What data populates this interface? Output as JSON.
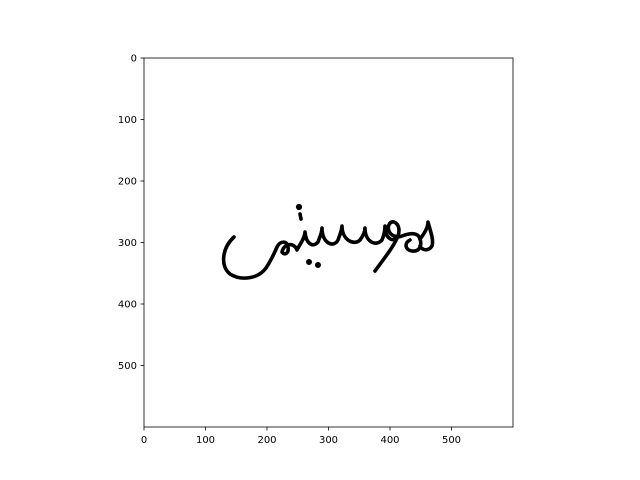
{
  "image": {
    "type": "image",
    "content": "handwritten Arabic word",
    "text": "موسيقى",
    "xlim": [
      0,
      600
    ],
    "ylim": [
      600,
      0
    ],
    "x_ticks": [
      "0",
      "100",
      "200",
      "300",
      "400",
      "500"
    ],
    "y_ticks": [
      "0",
      "100",
      "200",
      "300",
      "400",
      "500"
    ]
  }
}
